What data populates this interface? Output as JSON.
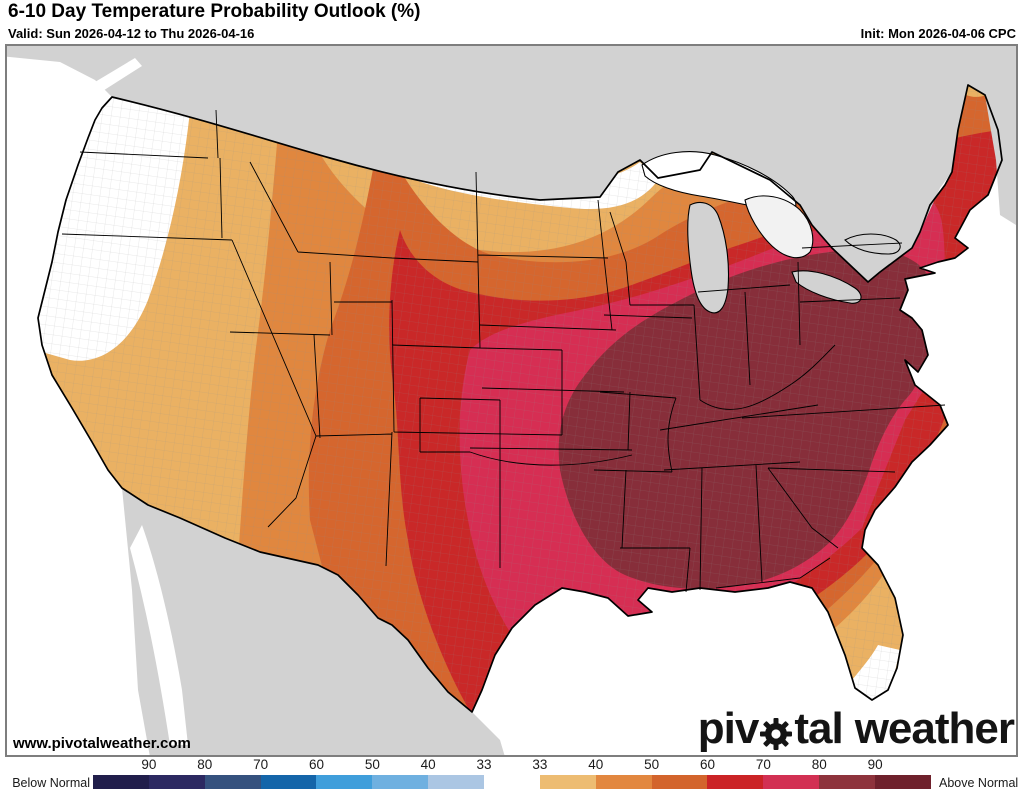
{
  "header": {
    "title": "6-10 Day Temperature Probability Outlook (%)",
    "valid": "Valid: Sun 2026-04-12 to Thu 2026-04-16",
    "init": "Init: Mon 2026-04-06 CPC"
  },
  "map": {
    "watermark": "www.pivotalweather.com",
    "logo": {
      "prefix": "piv",
      "suffix": "tal",
      "second_word": "weather",
      "gear_icon": "gear"
    },
    "region_colors": {
      "ocean": "#ffffff",
      "background_land": "#d2d2d2",
      "normal_below_33": "#ffffff",
      "above_33_40": "#eab163",
      "above_40_50": "#e0873f",
      "above_50_60": "#d5662e",
      "above_60_70": "#c92828",
      "above_70_80": "#d62e53",
      "above_80_90": "#872e3a"
    },
    "lakes": {
      "superior": "#ffffff",
      "michigan": "#d2d2d2",
      "huron": "#f2f2f2",
      "erie": "#d2d2d2",
      "ontario": "#d2d2d2"
    },
    "regions_summary": [
      "Pacific Northwest (WA, OR, NW CA) below 33 (white)",
      "Northern ND / northern MN strip below 33 (white)",
      "CA, NV, western UT, western AZ 33-40 above normal",
      "ID, MT, Dakotas, upper Midwest, northern Maine 40-50 above normal",
      "WY, CO west, NM, west TX, upper Great Lakes, northern New England 50-60",
      "High Plains, most of TX, NE/IA, S Wisconsin/Michigan, NY, New England 60-70",
      "OK, east TX coast, MO/IL/IN belt, mid-Atlantic and SE coasts, north FL 70-80",
      "AR, LA, MS, AL, TN, KY, OH valley, GA, inland Carolinas, VA 80-90 (dark maroon)",
      "South Florida tip below 33 (white)"
    ]
  },
  "colorbar": {
    "below_label": "Below Normal",
    "above_label": "Above Normal",
    "segments": [
      {
        "range": "below >90",
        "color": "#211e4b"
      },
      {
        "range": "below 80-90",
        "color": "#2c2961"
      },
      {
        "range": "below 70-80",
        "color": "#35517e"
      },
      {
        "range": "below 60-70",
        "color": "#1465a9"
      },
      {
        "range": "below 50-60",
        "color": "#3f9edb"
      },
      {
        "range": "below 40-50",
        "color": "#6fb0e0"
      },
      {
        "range": "below 33-40",
        "color": "#abc6e3"
      },
      {
        "range": "normal <33",
        "color": "#ffffff"
      },
      {
        "range": "above 33-40",
        "color": "#edbc72"
      },
      {
        "range": "above 40-50",
        "color": "#e2873f"
      },
      {
        "range": "above 50-60",
        "color": "#d3642c"
      },
      {
        "range": "above 60-70",
        "color": "#cb2326"
      },
      {
        "range": "above 70-80",
        "color": "#d23053"
      },
      {
        "range": "above 80-90",
        "color": "#8e333c"
      },
      {
        "range": "above >90",
        "color": "#6f212c"
      }
    ],
    "ticks_below": [
      "90",
      "80",
      "70",
      "60",
      "50",
      "40",
      "33"
    ],
    "ticks_above": [
      "33",
      "40",
      "50",
      "60",
      "70",
      "80",
      "90"
    ]
  }
}
